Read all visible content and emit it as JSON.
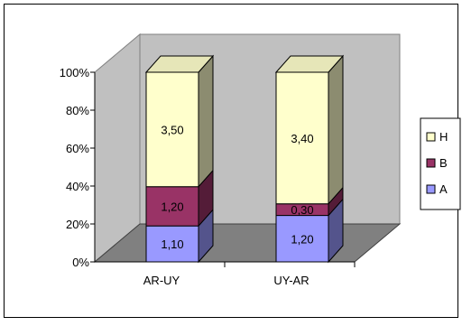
{
  "chart_data": {
    "type": "bar",
    "stacked": "percent",
    "three_d": true,
    "categories": [
      "AR-UY",
      "UY-AR"
    ],
    "series": [
      {
        "name": "A",
        "values": [
          1.1,
          1.2
        ],
        "labels": [
          "1,10",
          "1,20"
        ],
        "color": "#9999ff"
      },
      {
        "name": "B",
        "values": [
          1.2,
          0.3
        ],
        "labels": [
          "1,20",
          "0,30"
        ],
        "color": "#993366"
      },
      {
        "name": "H",
        "values": [
          3.5,
          3.4
        ],
        "labels": [
          "3,50",
          "3,40"
        ],
        "color": "#ffffcc"
      }
    ],
    "y_ticks": [
      "0%",
      "20%",
      "40%",
      "60%",
      "80%",
      "100%"
    ],
    "ylim": [
      0,
      100
    ],
    "legend_position": "right",
    "legend_order": [
      "H",
      "B",
      "A"
    ],
    "wall_color": "#c0c0c0",
    "floor_color": "#808080",
    "grid": false
  }
}
